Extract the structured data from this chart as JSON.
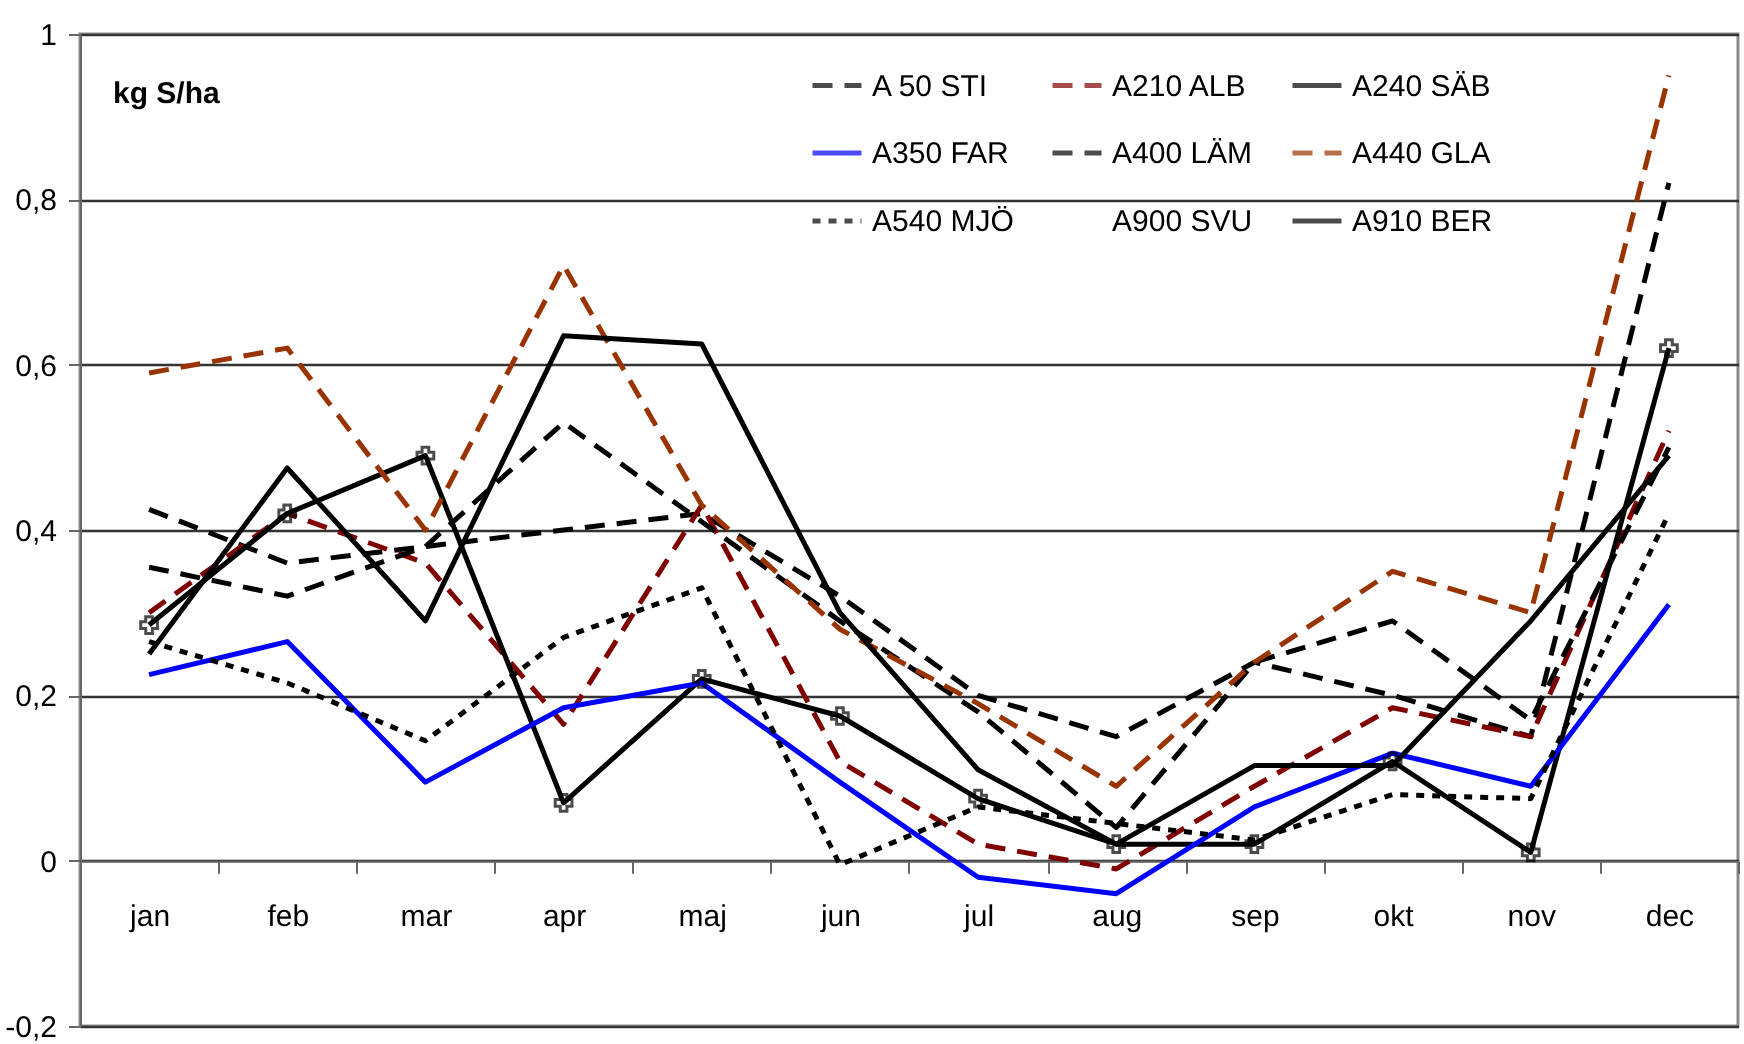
{
  "chart_data": {
    "type": "line",
    "ylabel": "kg S/ha",
    "categories": [
      "jan",
      "feb",
      "mar",
      "apr",
      "maj",
      "jun",
      "jul",
      "aug",
      "sep",
      "okt",
      "nov",
      "dec"
    ],
    "series": [
      {
        "name": "A 50 STI",
        "color": "#000000",
        "line_style": "dashed",
        "values": [
          0.425,
          0.36,
          0.38,
          0.4,
          0.42,
          0.32,
          0.2,
          0.15,
          0.24,
          0.2,
          0.15,
          0.82
        ]
      },
      {
        "name": "A210 ALB",
        "color": "#800000",
        "line_style": "dashed",
        "values": [
          0.3,
          0.42,
          0.36,
          0.165,
          0.43,
          0.12,
          0.02,
          -0.01,
          0.09,
          0.185,
          0.15,
          0.52
        ]
      },
      {
        "name": "A240 SÄB",
        "color": "#000000",
        "line_style": "solid",
        "marker": "cross",
        "values": [
          0.285,
          0.42,
          0.49,
          0.07,
          0.22,
          0.175,
          0.075,
          0.02,
          0.02,
          0.12,
          0.01,
          0.62
        ]
      },
      {
        "name": "A350 FAR",
        "color": "#0000ff",
        "line_style": "solid",
        "values": [
          0.225,
          0.265,
          0.095,
          0.185,
          0.215,
          0.095,
          -0.02,
          -0.04,
          0.065,
          0.13,
          0.09,
          0.31
        ]
      },
      {
        "name": "A400 LÄM",
        "color": "#000000",
        "line_style": "dashed",
        "values": [
          0.355,
          0.32,
          0.38,
          0.53,
          0.41,
          0.29,
          0.18,
          0.04,
          0.24,
          0.29,
          0.17,
          0.5
        ]
      },
      {
        "name": "A440 GLA",
        "color": "#993300",
        "line_style": "dashed",
        "values": [
          0.59,
          0.62,
          0.4,
          0.72,
          0.43,
          0.28,
          0.19,
          0.09,
          0.24,
          0.35,
          0.3,
          0.95
        ]
      },
      {
        "name": "A540 MJÖ",
        "color": "#000000",
        "line_style": "dotted",
        "values": [
          0.265,
          0.215,
          0.145,
          0.27,
          0.33,
          -0.005,
          0.065,
          0.045,
          0.025,
          0.08,
          0.075,
          0.42
        ]
      },
      {
        "name": "A900 SVU",
        "line_style": "solid",
        "values": [
          null,
          null,
          null,
          null,
          null,
          null,
          null,
          null,
          null,
          null,
          null,
          null
        ]
      },
      {
        "name": "A910 BER",
        "color": "#000000",
        "line_style": "solid",
        "values": [
          0.25,
          0.475,
          0.29,
          0.635,
          0.625,
          0.3,
          0.11,
          0.02,
          0.115,
          0.115,
          0.29,
          0.49
        ]
      }
    ],
    "ylim": [
      -0.2,
      1
    ],
    "yticks": [
      {
        "value": -0.2,
        "label": "-0,2"
      },
      0,
      {
        "value": 0.2,
        "label": "0,2"
      },
      {
        "value": 0.4,
        "label": "0,4"
      },
      {
        "value": 0.6,
        "label": "0,6"
      },
      {
        "value": 0.8,
        "label": "0,8"
      },
      1
    ],
    "grid": "y",
    "legend": "top right"
  }
}
